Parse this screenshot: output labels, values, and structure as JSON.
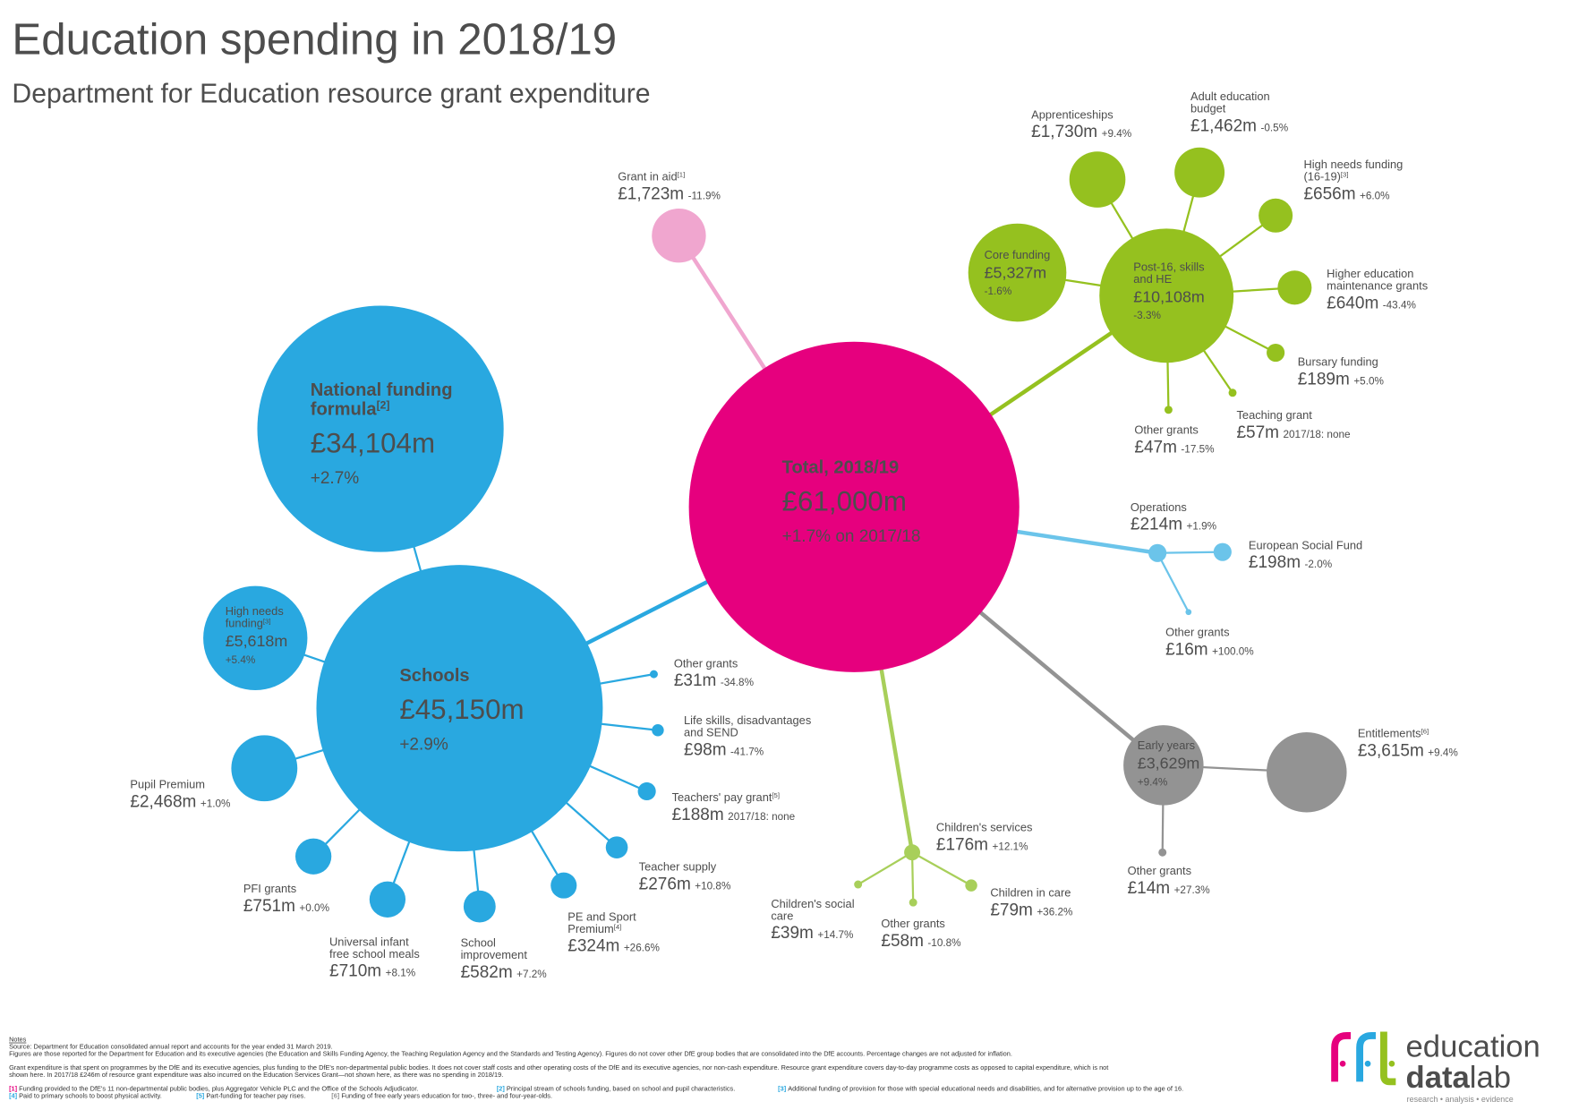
{
  "title": "Education spending in 2018/19",
  "subtitle": "Department for Education resource grant expenditure",
  "colors": {
    "total": "#e6007e",
    "grant_in_aid": "#f0a6cf",
    "schools": "#29a8e0",
    "post16": "#95c11f",
    "operations": "#6bc4ea",
    "children": "#a8cf5a",
    "early_years": "#939393",
    "text": "#4d4d4d"
  },
  "nodes": {
    "total": {
      "name": "Total, 2018/19",
      "value": "£61,000m",
      "change": "+1.7% on 2017/18"
    },
    "grant_in_aid": {
      "name": "Grant in aid",
      "note": "[1]",
      "value": "£1,723m",
      "change": "-11.9%"
    },
    "schools": {
      "name": "Schools",
      "value": "£45,150m",
      "change": "+2.9%"
    },
    "nff": {
      "name": "National funding",
      "name2": "formula",
      "note": "[2]",
      "value": "£34,104m",
      "change": "+2.7%"
    },
    "high_needs": {
      "name": "High needs",
      "name2": "funding",
      "note": "[3]",
      "value": "£5,618m",
      "change": "+5.4%"
    },
    "pupil_premium": {
      "name": "Pupil Premium",
      "value": "£2,468m",
      "change": "+1.0%"
    },
    "pfi": {
      "name": "PFI grants",
      "value": "£751m",
      "change": "+0.0%"
    },
    "uifsm": {
      "name": "Universal infant",
      "name2": "free school meals",
      "value": "£710m",
      "change": "+8.1%"
    },
    "school_improvement": {
      "name": "School",
      "name2": "improvement",
      "value": "£582m",
      "change": "+7.2%"
    },
    "pe_sport": {
      "name": "PE and Sport",
      "name2": "Premium",
      "note": "[4]",
      "value": "£324m",
      "change": "+26.6%"
    },
    "teacher_supply": {
      "name": "Teacher supply",
      "value": "£276m",
      "change": "+10.8%"
    },
    "teachers_pay": {
      "name": "Teachers' pay grant",
      "note": "[5]",
      "value": "£188m",
      "change": "2017/18: none"
    },
    "life_skills": {
      "name": "Life skills, disadvantages",
      "name2": "and SEND",
      "value": "£98m",
      "change": "-41.7%"
    },
    "schools_other": {
      "name": "Other grants",
      "value": "£31m",
      "change": "-34.8%"
    },
    "post16": {
      "name": "Post-16, skills",
      "name2": "and HE",
      "value": "£10,108m",
      "change": "-3.3%"
    },
    "core_funding": {
      "name": "Core funding",
      "value": "£5,327m",
      "change": "-1.6%"
    },
    "apprenticeships": {
      "name": "Apprenticeships",
      "value": "£1,730m",
      "change": "+9.4%"
    },
    "adult_education": {
      "name": "Adult education",
      "name2": "budget",
      "value": "£1,462m",
      "change": "-0.5%"
    },
    "high_needs_1619": {
      "name": "High needs funding",
      "name2": "(16-19)",
      "note": "[3]",
      "value": "£656m",
      "change": "+6.0%"
    },
    "he_maintenance": {
      "name": "Higher education",
      "name2": "maintenance grants",
      "value": "£640m",
      "change": "-43.4%"
    },
    "bursary": {
      "name": "Bursary funding",
      "value": "£189m",
      "change": "+5.0%"
    },
    "teaching_grant": {
      "name": "Teaching grant",
      "value": "£57m",
      "change": "2017/18: none"
    },
    "post16_other": {
      "name": "Other grants",
      "value": "£47m",
      "change": "-17.5%"
    },
    "operations": {
      "name": "Operations",
      "value": "£214m",
      "change": "+1.9%"
    },
    "esf": {
      "name": "European Social Fund",
      "value": "£198m",
      "change": "-2.0%"
    },
    "ops_other": {
      "name": "Other grants",
      "value": "£16m",
      "change": "+100.0%"
    },
    "early_years": {
      "name": "Early years",
      "value": "£3,629m",
      "change": "+9.4%"
    },
    "entitlements": {
      "name": "Entitlements",
      "note": "[6]",
      "value": "£3,615m",
      "change": "+9.4%"
    },
    "ey_other": {
      "name": "Other grants",
      "value": "£14m",
      "change": "+27.3%"
    },
    "childrens_services": {
      "name": "Children's services",
      "value": "£176m",
      "change": "+12.1%"
    },
    "childrens_social_care": {
      "name": "Children's social",
      "name2": "care",
      "value": "£39m",
      "change": "+14.7%"
    },
    "cs_other": {
      "name": "Other grants",
      "value": "£58m",
      "change": "-10.8%"
    },
    "children_in_care": {
      "name": "Children in care",
      "value": "£79m",
      "change": "+36.2%"
    }
  },
  "notes": {
    "heading": "Notes",
    "source": "Source: Department for Education consolidated annual report and accounts for the year ended 31 March 2019.",
    "line1": "Figures are those reported for the Department for Education and its executive agencies (the Education and Skills Funding Agency, the Teaching Regulation Agency and the Standards and Testing Agency). Figures do not cover other DfE group bodies that are consolidated into the DfE accounts. Percentage changes are not adjusted for inflation.",
    "line2": "Grant expenditure is that spent on programmes by the DfE and its executive agencies, plus funding to the DfE's non-departmental public bodies. It does not cover staff costs and other operating costs of the DfE and its executive agencies, nor non-cash expenditure. Resource grant expenditure covers day-to-day programme costs as opposed to capital expenditure, which is not",
    "line3": "shown here. In 2017/18 £246m of resource grant expenditure was also incurred on the Education Services Grant—not shown here, as there was no spending in 2018/19.",
    "footnotes": [
      {
        "mark": "[1]",
        "text": "Funding provided to the DfE's 11 non-departmental public bodies, plus Aggregator Vehicle PLC and the Office of the Schools Adjudicator.",
        "color": "#e6007e"
      },
      {
        "mark": "[2]",
        "text": "Principal stream of schools funding, based on school and pupil characteristics.",
        "color": "#29a8e0"
      },
      {
        "mark": "[3]",
        "text": "Additional funding of provision for those with special educational needs and disabilities, and for alternative provision up to the age of 16.",
        "color": "#29a8e0"
      },
      {
        "mark": "[4]",
        "text": "Paid to primary schools to boost physical activity.",
        "color": "#29a8e0"
      },
      {
        "mark": "[5]",
        "text": "Part-funding for teacher pay rises.",
        "color": "#29a8e0"
      },
      {
        "mark": "[6]",
        "text": "Funding of free early years education for two-, three- and four-year-olds.",
        "color": "#939393"
      }
    ]
  },
  "logo": {
    "line1": "education",
    "line2a": "data",
    "line2b": "lab",
    "tagline": "research • analysis • evidence",
    "mark": "ffl"
  }
}
